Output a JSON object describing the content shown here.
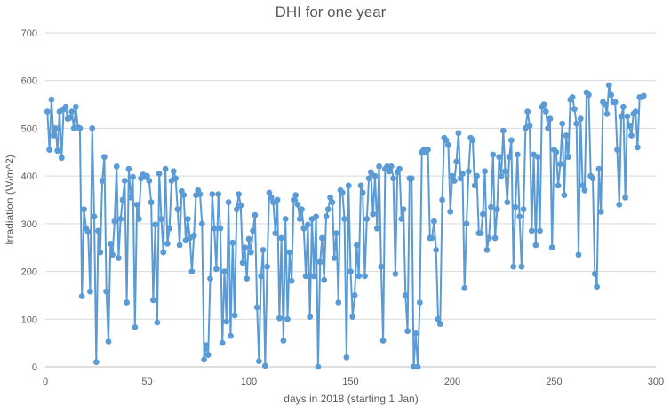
{
  "chart_data": {
    "type": "line",
    "title": "DHI for one year",
    "xlabel": "days in 2018 (starting 1 Jan)",
    "ylabel": "Irradiation (W/m^2)",
    "xlim": [
      0,
      300
    ],
    "ylim": [
      0,
      700
    ],
    "x_ticks": [
      0,
      50,
      100,
      150,
      200,
      250,
      300
    ],
    "y_ticks": [
      0,
      100,
      200,
      300,
      400,
      500,
      600,
      700
    ],
    "grid": true,
    "markers": true,
    "colors": {
      "series": "#5B9BD5",
      "grid": "#D9D9D9",
      "text": "#595959"
    },
    "series": [
      {
        "values": [
          [
            1,
            535
          ],
          [
            2,
            455
          ],
          [
            3,
            560
          ],
          [
            4,
            485
          ],
          [
            5,
            500
          ],
          [
            6,
            453
          ],
          [
            7,
            535
          ],
          [
            8,
            438
          ],
          [
            9,
            540
          ],
          [
            10,
            545
          ],
          [
            11,
            520
          ],
          [
            12,
            522
          ],
          [
            13,
            535
          ],
          [
            14,
            500
          ],
          [
            15,
            545
          ],
          [
            16,
            502
          ],
          [
            17,
            500
          ],
          [
            18,
            148
          ],
          [
            19,
            330
          ],
          [
            20,
            290
          ],
          [
            21,
            283
          ],
          [
            22,
            158
          ],
          [
            23,
            500
          ],
          [
            24,
            315
          ],
          [
            25,
            10
          ],
          [
            26,
            285
          ],
          [
            27,
            240
          ],
          [
            28,
            390
          ],
          [
            29,
            440
          ],
          [
            30,
            158
          ],
          [
            31,
            53
          ],
          [
            32,
            258
          ],
          [
            33,
            235
          ],
          [
            34,
            305
          ],
          [
            35,
            420
          ],
          [
            36,
            228
          ],
          [
            37,
            310
          ],
          [
            38,
            350
          ],
          [
            39,
            390
          ],
          [
            40,
            135
          ],
          [
            41,
            415
          ],
          [
            42,
            355
          ],
          [
            43,
            398
          ],
          [
            44,
            83
          ],
          [
            45,
            340
          ],
          [
            46,
            310
          ],
          [
            47,
            395
          ],
          [
            48,
            403
          ],
          [
            49,
            398
          ],
          [
            50,
            400
          ],
          [
            51,
            390
          ],
          [
            52,
            345
          ],
          [
            53,
            140
          ],
          [
            54,
            298
          ],
          [
            55,
            93
          ],
          [
            56,
            405
          ],
          [
            57,
            310
          ],
          [
            58,
            240
          ],
          [
            59,
            415
          ],
          [
            60,
            258
          ],
          [
            61,
            290
          ],
          [
            62,
            390
          ],
          [
            63,
            410
          ],
          [
            64,
            395
          ],
          [
            65,
            330
          ],
          [
            66,
            255
          ],
          [
            67,
            368
          ],
          [
            68,
            360
          ],
          [
            69,
            265
          ],
          [
            70,
            310
          ],
          [
            71,
            270
          ],
          [
            72,
            200
          ],
          [
            73,
            275
          ],
          [
            74,
            360
          ],
          [
            75,
            370
          ],
          [
            76,
            362
          ],
          [
            77,
            300
          ],
          [
            78,
            15
          ],
          [
            79,
            45
          ],
          [
            80,
            25
          ],
          [
            81,
            185
          ],
          [
            82,
            362
          ],
          [
            83,
            290
          ],
          [
            84,
            205
          ],
          [
            85,
            362
          ],
          [
            86,
            290
          ],
          [
            87,
            50
          ],
          [
            88,
            200
          ],
          [
            89,
            95
          ],
          [
            90,
            345
          ],
          [
            91,
            65
          ],
          [
            92,
            260
          ],
          [
            93,
            108
          ],
          [
            94,
            330
          ],
          [
            95,
            362
          ],
          [
            96,
            338
          ],
          [
            97,
            218
          ],
          [
            98,
            250
          ],
          [
            99,
            185
          ],
          [
            100,
            268
          ],
          [
            101,
            240
          ],
          [
            102,
            285
          ],
          [
            103,
            318
          ],
          [
            104,
            125
          ],
          [
            105,
            12
          ],
          [
            106,
            190
          ],
          [
            107,
            245
          ],
          [
            108,
            2
          ],
          [
            109,
            210
          ],
          [
            110,
            365
          ],
          [
            111,
            355
          ],
          [
            112,
            345
          ],
          [
            113,
            280
          ],
          [
            114,
            350
          ],
          [
            115,
            102
          ],
          [
            116,
            270
          ],
          [
            117,
            55
          ],
          [
            118,
            310
          ],
          [
            119,
            100
          ],
          [
            120,
            240
          ],
          [
            121,
            180
          ],
          [
            122,
            350
          ],
          [
            123,
            360
          ],
          [
            124,
            340
          ],
          [
            125,
            310
          ],
          [
            126,
            330
          ],
          [
            127,
            290
          ],
          [
            128,
            190
          ],
          [
            129,
            298
          ],
          [
            130,
            105
          ],
          [
            131,
            310
          ],
          [
            132,
            190
          ],
          [
            133,
            315
          ],
          [
            134,
            0
          ],
          [
            135,
            220
          ],
          [
            136,
            270
          ],
          [
            137,
            182
          ],
          [
            138,
            315
          ],
          [
            139,
            330
          ],
          [
            140,
            355
          ],
          [
            141,
            345
          ],
          [
            142,
            228
          ],
          [
            143,
            280
          ],
          [
            144,
            135
          ],
          [
            145,
            370
          ],
          [
            146,
            365
          ],
          [
            147,
            310
          ],
          [
            148,
            20
          ],
          [
            149,
            380
          ],
          [
            150,
            200
          ],
          [
            151,
            105
          ],
          [
            152,
            150
          ],
          [
            153,
            255
          ],
          [
            154,
            190
          ],
          [
            155,
            380
          ],
          [
            156,
            365
          ],
          [
            157,
            190
          ],
          [
            158,
            310
          ],
          [
            159,
            395
          ],
          [
            160,
            408
          ],
          [
            161,
            320
          ],
          [
            162,
            400
          ],
          [
            163,
            290
          ],
          [
            164,
            420
          ],
          [
            165,
            210
          ],
          [
            166,
            55
          ],
          [
            167,
            415
          ],
          [
            168,
            420
          ],
          [
            169,
            410
          ],
          [
            170,
            420
          ],
          [
            171,
            395
          ],
          [
            172,
            195
          ],
          [
            173,
            408
          ],
          [
            174,
            415
          ],
          [
            175,
            310
          ],
          [
            176,
            330
          ],
          [
            177,
            150
          ],
          [
            178,
            75
          ],
          [
            179,
            395
          ],
          [
            180,
            395
          ],
          [
            181,
            0
          ],
          [
            182,
            70
          ],
          [
            183,
            0
          ],
          [
            184,
            135
          ],
          [
            185,
            450
          ],
          [
            186,
            455
          ],
          [
            187,
            450
          ],
          [
            188,
            455
          ],
          [
            189,
            270
          ],
          [
            190,
            270
          ],
          [
            191,
            305
          ],
          [
            192,
            245
          ],
          [
            193,
            100
          ],
          [
            194,
            90
          ],
          [
            195,
            350
          ],
          [
            196,
            480
          ],
          [
            197,
            475
          ],
          [
            198,
            465
          ],
          [
            199,
            325
          ],
          [
            200,
            400
          ],
          [
            201,
            390
          ],
          [
            202,
            430
          ],
          [
            203,
            490
          ],
          [
            204,
            395
          ],
          [
            205,
            405
          ],
          [
            206,
            165
          ],
          [
            207,
            300
          ],
          [
            208,
            410
          ],
          [
            209,
            480
          ],
          [
            210,
            475
          ],
          [
            211,
            380
          ],
          [
            212,
            400
          ],
          [
            213,
            280
          ],
          [
            214,
            280
          ],
          [
            215,
            320
          ],
          [
            216,
            410
          ],
          [
            217,
            245
          ],
          [
            218,
            270
          ],
          [
            219,
            335
          ],
          [
            220,
            445
          ],
          [
            221,
            270
          ],
          [
            222,
            330
          ],
          [
            223,
            440
          ],
          [
            224,
            400
          ],
          [
            225,
            495
          ],
          [
            226,
            410
          ],
          [
            227,
            345
          ],
          [
            228,
            440
          ],
          [
            229,
            475
          ],
          [
            230,
            210
          ],
          [
            231,
            335
          ],
          [
            232,
            445
          ],
          [
            233,
            315
          ],
          [
            234,
            210
          ],
          [
            235,
            330
          ],
          [
            236,
            500
          ],
          [
            237,
            535
          ],
          [
            238,
            505
          ],
          [
            239,
            285
          ],
          [
            240,
            445
          ],
          [
            241,
            255
          ],
          [
            242,
            440
          ],
          [
            243,
            285
          ],
          [
            244,
            545
          ],
          [
            245,
            550
          ],
          [
            246,
            535
          ],
          [
            247,
            500
          ],
          [
            248,
            520
          ],
          [
            249,
            250
          ],
          [
            250,
            455
          ],
          [
            251,
            450
          ],
          [
            252,
            380
          ],
          [
            253,
            425
          ],
          [
            254,
            510
          ],
          [
            255,
            360
          ],
          [
            256,
            485
          ],
          [
            257,
            440
          ],
          [
            258,
            560
          ],
          [
            259,
            565
          ],
          [
            260,
            540
          ],
          [
            261,
            510
          ],
          [
            262,
            235
          ],
          [
            263,
            520
          ],
          [
            264,
            380
          ],
          [
            265,
            370
          ],
          [
            266,
            575
          ],
          [
            267,
            570
          ],
          [
            268,
            400
          ],
          [
            269,
            395
          ],
          [
            270,
            195
          ],
          [
            271,
            168
          ],
          [
            272,
            415
          ],
          [
            273,
            325
          ],
          [
            274,
            555
          ],
          [
            275,
            550
          ],
          [
            276,
            530
          ],
          [
            277,
            590
          ],
          [
            278,
            570
          ],
          [
            279,
            555
          ],
          [
            280,
            555
          ],
          [
            281,
            455
          ],
          [
            282,
            340
          ],
          [
            283,
            525
          ],
          [
            284,
            545
          ],
          [
            285,
            355
          ],
          [
            286,
            525
          ],
          [
            287,
            505
          ],
          [
            288,
            485
          ],
          [
            289,
            530
          ],
          [
            290,
            535
          ],
          [
            291,
            460
          ],
          [
            292,
            565
          ],
          [
            293,
            565
          ],
          [
            294,
            568
          ]
        ]
      }
    ]
  }
}
